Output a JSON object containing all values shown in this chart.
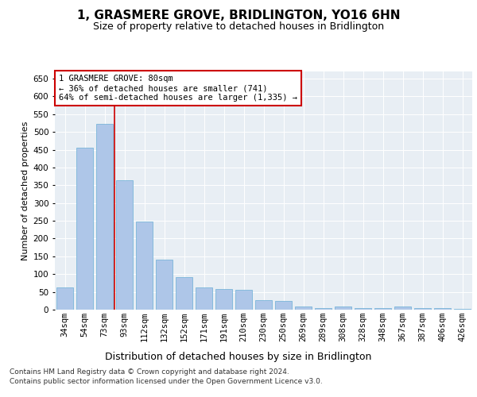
{
  "title": "1, GRASMERE GROVE, BRIDLINGTON, YO16 6HN",
  "subtitle": "Size of property relative to detached houses in Bridlington",
  "xlabel": "Distribution of detached houses by size in Bridlington",
  "ylabel": "Number of detached properties",
  "categories": [
    "34sqm",
    "54sqm",
    "73sqm",
    "93sqm",
    "112sqm",
    "132sqm",
    "152sqm",
    "171sqm",
    "191sqm",
    "210sqm",
    "230sqm",
    "250sqm",
    "269sqm",
    "289sqm",
    "308sqm",
    "328sqm",
    "348sqm",
    "367sqm",
    "387sqm",
    "406sqm",
    "426sqm"
  ],
  "values": [
    62,
    455,
    522,
    365,
    248,
    140,
    92,
    62,
    57,
    56,
    26,
    25,
    8,
    5,
    10,
    5,
    5,
    8,
    4,
    4,
    3
  ],
  "bar_color": "#aec6e8",
  "bar_edge_color": "#6aaed6",
  "vline_x": 2.5,
  "vline_color": "#cc0000",
  "annotation_line1": "1 GRASMERE GROVE: 80sqm",
  "annotation_line2": "← 36% of detached houses are smaller (741)",
  "annotation_line3": "64% of semi-detached houses are larger (1,335) →",
  "annotation_box_color": "#ffffff",
  "annotation_box_edge": "#cc0000",
  "ylim": [
    0,
    670
  ],
  "yticks": [
    0,
    50,
    100,
    150,
    200,
    250,
    300,
    350,
    400,
    450,
    500,
    550,
    600,
    650
  ],
  "background_color": "#e8eef4",
  "footer_line1": "Contains HM Land Registry data © Crown copyright and database right 2024.",
  "footer_line2": "Contains public sector information licensed under the Open Government Licence v3.0.",
  "title_fontsize": 11,
  "subtitle_fontsize": 9,
  "xlabel_fontsize": 9,
  "ylabel_fontsize": 8,
  "tick_fontsize": 7.5,
  "annotation_fontsize": 7.5
}
